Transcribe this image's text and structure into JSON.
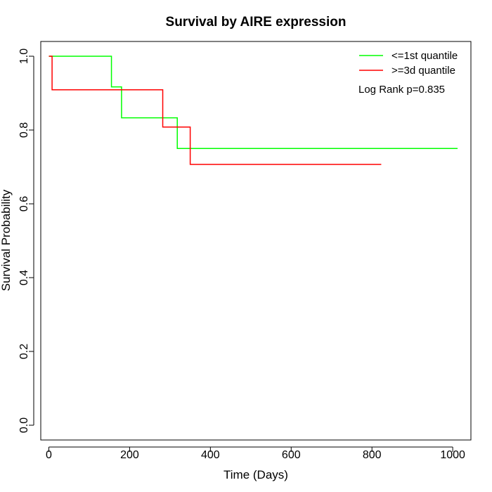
{
  "chart_data": {
    "type": "line",
    "title": "Survival by AIRE expression",
    "xlabel": "Time (Days)",
    "ylabel": "Survival Probability",
    "xlim": [
      -20,
      1045
    ],
    "ylim": [
      -0.04,
      1.04
    ],
    "x_ticks": [
      0,
      200,
      400,
      600,
      800,
      1000
    ],
    "x_tick_labels": [
      "0",
      "200",
      "400",
      "600",
      "800",
      "1000"
    ],
    "y_ticks": [
      0.0,
      0.2,
      0.4,
      0.6,
      0.8,
      1.0
    ],
    "y_tick_labels": [
      "0.0",
      "0.2",
      "0.4",
      "0.6",
      "0.8",
      "1.0"
    ],
    "grid": false,
    "legend_position": "top-right",
    "series": [
      {
        "name": "<=1st quantile",
        "color": "#00FF00",
        "step": true,
        "x": [
          0,
          155,
          180,
          318,
          1012
        ],
        "y": [
          1.0,
          0.917,
          0.833,
          0.75,
          0.75
        ]
      },
      {
        "name": ">=3d quantile",
        "color": "#FF0000",
        "step": true,
        "x": [
          0,
          8,
          282,
          350,
          823
        ],
        "y": [
          1.0,
          0.909,
          0.808,
          0.707,
          0.707
        ]
      }
    ],
    "annotation": "Log Rank p=0.835"
  }
}
